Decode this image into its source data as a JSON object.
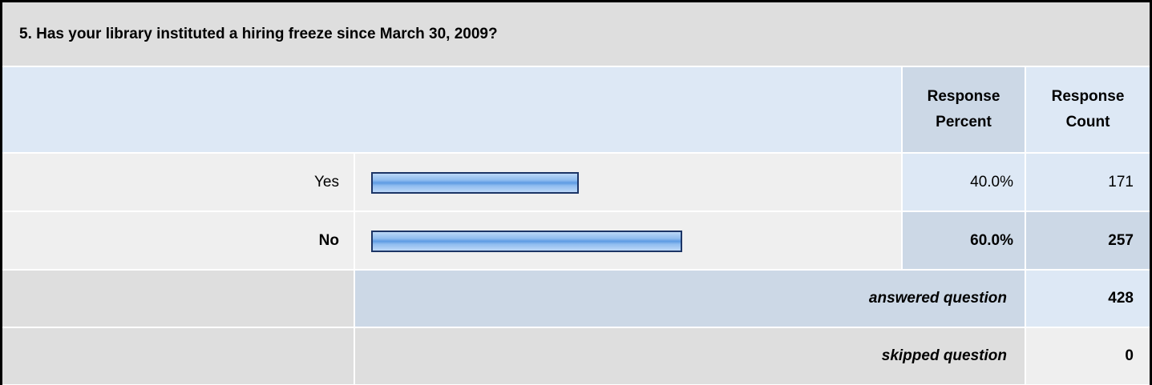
{
  "title": "5. Has your library instituted a hiring freeze since March 30, 2009?",
  "columns": [
    "Response Percent",
    "Response Count"
  ],
  "rows": [
    {
      "label": "Yes",
      "percent": 40,
      "percent_label": "40.0%",
      "count": 171
    },
    {
      "label": "No",
      "percent": 60,
      "percent_label": "60.0%",
      "count": 257
    }
  ],
  "answered": {
    "label": "answered question",
    "count": 428
  },
  "skipped": {
    "label": "skipped question",
    "count": 0
  }
}
